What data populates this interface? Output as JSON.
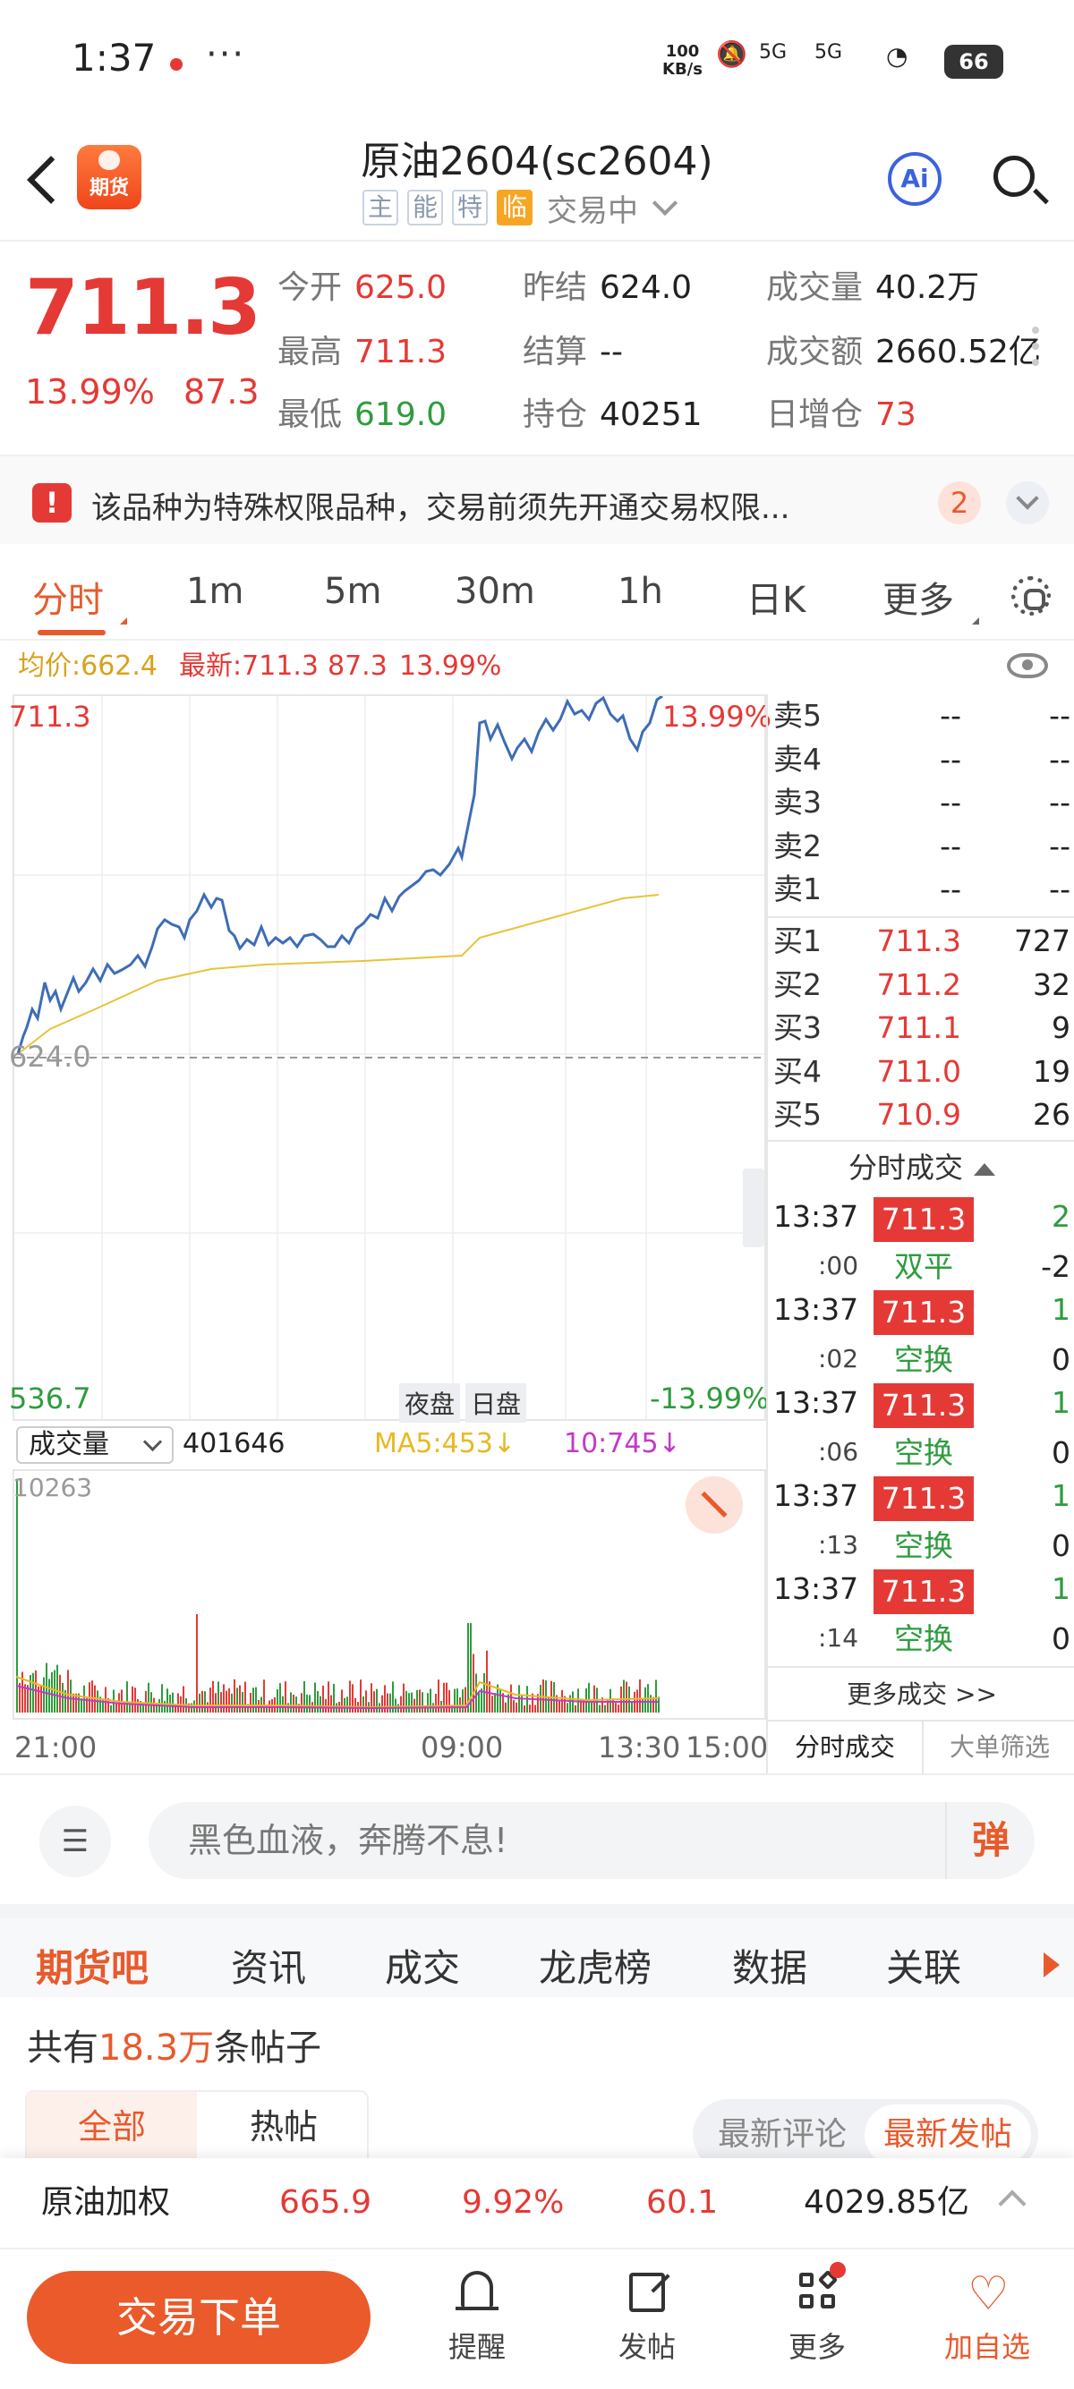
{
  "status_bar": {
    "time": "1:37",
    "dots": "···",
    "net_speed_top": "100",
    "net_speed_bottom": "KB/s",
    "signal_1": "5G",
    "signal_2": "5G",
    "battery": "66"
  },
  "header": {
    "logo_text": "期货",
    "title": "原油2604(sc2604)",
    "tags": [
      "主",
      "能",
      "特",
      "临"
    ],
    "trade_status": "交易中",
    "ai_label": "Ai"
  },
  "quote": {
    "price": "711.3",
    "pct": "13.99%",
    "change": "87.3",
    "fields": [
      {
        "label": "今开",
        "value": "625.0",
        "color": "#e53935"
      },
      {
        "label": "昨结",
        "value": "624.0",
        "color": "#222222"
      },
      {
        "label": "成交量",
        "value": "40.2万",
        "color": "#222222"
      },
      {
        "label": "最高",
        "value": "711.3",
        "color": "#e53935"
      },
      {
        "label": "结算",
        "value": "--",
        "color": "#222222"
      },
      {
        "label": "成交额",
        "value": "2660.52亿",
        "color": "#222222"
      },
      {
        "label": "最低",
        "value": "619.0",
        "color": "#2e9c3e"
      },
      {
        "label": "持仓",
        "value": "40251",
        "color": "#222222"
      },
      {
        "label": "日增仓",
        "value": "73",
        "color": "#e53935"
      }
    ]
  },
  "notice": {
    "text": "该品种为特殊权限品种，交易前须先开通交易权限...",
    "count": "2"
  },
  "periods": [
    "分时",
    "1m",
    "5m",
    "30m",
    "1h",
    "日K",
    "更多"
  ],
  "avg_bar": {
    "avg": "均价:662.4",
    "latest": "最新:711.3",
    "change": "87.3",
    "pct": "13.99%"
  },
  "chart": {
    "high_label": "711.3",
    "high_pct": "13.99%",
    "base_label": "624.0",
    "low_label": "536.7",
    "low_pct": "-13.99%",
    "session_night": "夜盘",
    "session_day": "日盘"
  },
  "volume": {
    "selector": "成交量",
    "value": "401646",
    "ma5": "MA5:453↓",
    "ma10": "10:745↓",
    "max_label": "10263"
  },
  "x_axis": [
    "21:00",
    "09:00",
    "13:30",
    "15:00"
  ],
  "order_book": {
    "asks": [
      {
        "label": "卖5",
        "price": "--",
        "qty": "--"
      },
      {
        "label": "卖4",
        "price": "--",
        "qty": "--"
      },
      {
        "label": "卖3",
        "price": "--",
        "qty": "--"
      },
      {
        "label": "卖2",
        "price": "--",
        "qty": "--"
      },
      {
        "label": "卖1",
        "price": "--",
        "qty": "--"
      }
    ],
    "bids": [
      {
        "label": "买1",
        "price": "711.3",
        "qty": "727"
      },
      {
        "label": "买2",
        "price": "711.2",
        "qty": "32"
      },
      {
        "label": "买3",
        "price": "711.1",
        "qty": "9"
      },
      {
        "label": "买4",
        "price": "711.0",
        "qty": "19"
      },
      {
        "label": "买5",
        "price": "710.9",
        "qty": "26"
      }
    ]
  },
  "trades": {
    "title": "分时成交",
    "rows": [
      {
        "time": "13:37",
        "sec": ":00",
        "price": "711.3",
        "type": "双平",
        "qty": "2",
        "oi": "-2"
      },
      {
        "time": "13:37",
        "sec": ":02",
        "price": "711.3",
        "type": "空换",
        "qty": "1",
        "oi": "0"
      },
      {
        "time": "13:37",
        "sec": ":06",
        "price": "711.3",
        "type": "空换",
        "qty": "1",
        "oi": "0"
      },
      {
        "time": "13:37",
        "sec": ":13",
        "price": "711.3",
        "type": "空换",
        "qty": "1",
        "oi": "0"
      },
      {
        "time": "13:37",
        "sec": ":14",
        "price": "711.3",
        "type": "空换",
        "qty": "1",
        "oi": "0"
      }
    ],
    "more": "更多成交 >>",
    "tab_active": "分时成交",
    "tab_other": "大单筛选"
  },
  "comment": {
    "placeholder": "黑色血液，奔腾不息!",
    "danmu": "弹"
  },
  "nav_tabs": [
    "期货吧",
    "资讯",
    "成交",
    "龙虎榜",
    "数据",
    "关联"
  ],
  "posts": {
    "count_prefix": "共有",
    "count_value": "18.3万",
    "count_suffix": "条帖子",
    "seg_left": [
      "全部",
      "热帖"
    ],
    "seg_right": [
      "最新评论",
      "最新发帖"
    ]
  },
  "ticker": {
    "name": "原油加权",
    "price": "665.9",
    "pct": "9.92%",
    "change": "60.1",
    "amount": "4029.85亿"
  },
  "bottom_nav": {
    "order_button": "交易下单",
    "items": [
      "提醒",
      "发帖",
      "更多",
      "加自选"
    ]
  }
}
